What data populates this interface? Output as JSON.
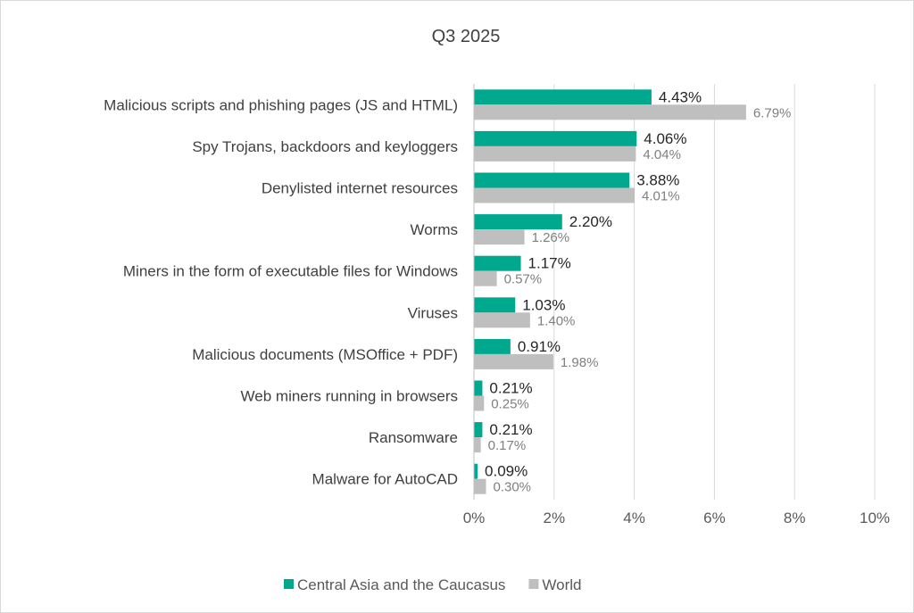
{
  "chart_data": {
    "type": "bar",
    "orientation": "horizontal",
    "title": "Q3 2025",
    "categories": [
      "Malicious scripts and phishing pages (JS and HTML)",
      "Spy Trojans, backdoors and keyloggers",
      "Denylisted internet resources",
      "Worms",
      "Miners in the form of executable files for Windows",
      "Viruses",
      "Malicious documents (MSOffice + PDF)",
      "Web miners running in browsers",
      "Ransomware",
      "Malware for AutoCAD"
    ],
    "series": [
      {
        "name": "Central Asia and the Caucasus",
        "color": "#00a88e",
        "values": [
          4.43,
          4.06,
          3.88,
          2.2,
          1.17,
          1.03,
          0.91,
          0.21,
          0.21,
          0.09
        ],
        "labels": [
          "4.43%",
          "4.06%",
          "3.88%",
          "2.20%",
          "1.17%",
          "1.03%",
          "0.91%",
          "0.21%",
          "0.21%",
          "0.09%"
        ]
      },
      {
        "name": "World",
        "color": "#bfbfbf",
        "values": [
          6.79,
          4.04,
          4.01,
          1.26,
          0.57,
          1.4,
          1.98,
          0.25,
          0.17,
          0.3
        ],
        "labels": [
          "6.79%",
          "4.04%",
          "4.01%",
          "1.26%",
          "0.57%",
          "1.40%",
          "1.98%",
          "0.25%",
          "0.17%",
          "0.30%"
        ]
      }
    ],
    "xlim": [
      0,
      10
    ],
    "xticks": [
      0,
      2,
      4,
      6,
      8,
      10
    ],
    "xtick_labels": [
      "0%",
      "2%",
      "4%",
      "6%",
      "8%",
      "10%"
    ],
    "grid": true,
    "legend_position": "bottom"
  }
}
